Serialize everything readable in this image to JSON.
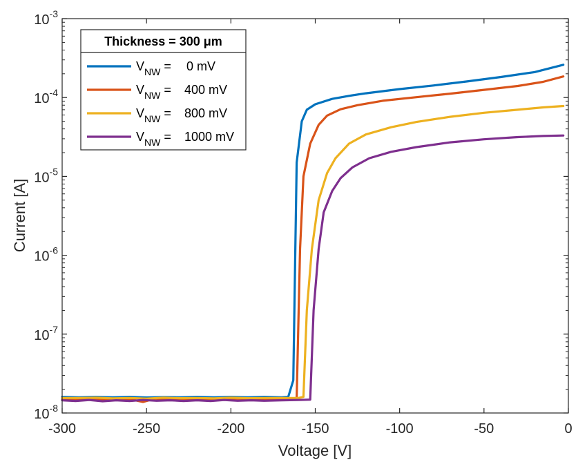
{
  "chart_data": {
    "type": "line",
    "xlabel": "Voltage [V]",
    "ylabel": "Current [A]",
    "xlim": [
      -300,
      0
    ],
    "ylim": [
      1e-08,
      0.001
    ],
    "yscale": "log",
    "grid": false,
    "x_ticks": [
      "-300",
      "-250",
      "-200",
      "-150",
      "-100",
      "-50",
      "0"
    ],
    "y_ticks": [
      {
        "base": "10",
        "exp": "-8"
      },
      {
        "base": "10",
        "exp": "-7"
      },
      {
        "base": "10",
        "exp": "-6"
      },
      {
        "base": "10",
        "exp": "-5"
      },
      {
        "base": "10",
        "exp": "-4"
      },
      {
        "base": "10",
        "exp": "-3"
      }
    ],
    "legend": {
      "title": "Thickness = 300 μm",
      "placement": "top-left",
      "prefix_main": "V",
      "prefix_sub": "NW",
      "eq": "="
    },
    "series": [
      {
        "name": "V_NW = 0 mV",
        "value_text": "0 mV",
        "color": "#0072BD",
        "points": [
          [
            -300,
            1.6e-08
          ],
          [
            -290,
            1.58e-08
          ],
          [
            -280,
            1.6e-08
          ],
          [
            -270,
            1.58e-08
          ],
          [
            -260,
            1.6e-08
          ],
          [
            -250,
            1.57e-08
          ],
          [
            -240,
            1.59e-08
          ],
          [
            -230,
            1.58e-08
          ],
          [
            -220,
            1.6e-08
          ],
          [
            -210,
            1.58e-08
          ],
          [
            -200,
            1.6e-08
          ],
          [
            -190,
            1.58e-08
          ],
          [
            -180,
            1.6e-08
          ],
          [
            -170,
            1.58e-08
          ],
          [
            -166,
            1.6e-08
          ],
          [
            -163,
            2.6e-08
          ],
          [
            -161,
            1.5e-05
          ],
          [
            -158,
            5e-05
          ],
          [
            -155,
            7e-05
          ],
          [
            -150,
            8.2e-05
          ],
          [
            -140,
            9.6e-05
          ],
          [
            -130,
            0.000105
          ],
          [
            -120,
            0.000113
          ],
          [
            -100,
            0.000128
          ],
          [
            -80,
            0.000142
          ],
          [
            -60,
            0.00016
          ],
          [
            -40,
            0.000182
          ],
          [
            -20,
            0.00021
          ],
          [
            -3,
            0.00026
          ]
        ]
      },
      {
        "name": "V_NW = 400 mV",
        "value_text": "400 mV",
        "color": "#D95319",
        "points": [
          [
            -300,
            1.5e-08
          ],
          [
            -290,
            1.47e-08
          ],
          [
            -280,
            1.52e-08
          ],
          [
            -270,
            1.45e-08
          ],
          [
            -260,
            1.5e-08
          ],
          [
            -252,
            1.38e-08
          ],
          [
            -245,
            1.52e-08
          ],
          [
            -235,
            1.47e-08
          ],
          [
            -225,
            1.51e-08
          ],
          [
            -215,
            1.46e-08
          ],
          [
            -205,
            1.5e-08
          ],
          [
            -195,
            1.52e-08
          ],
          [
            -185,
            1.48e-08
          ],
          [
            -175,
            1.5e-08
          ],
          [
            -168,
            1.5e-08
          ],
          [
            -161,
            1.55e-08
          ],
          [
            -159,
            1.2e-06
          ],
          [
            -157,
            1e-05
          ],
          [
            -153,
            2.6e-05
          ],
          [
            -148,
            4.5e-05
          ],
          [
            -143,
            5.9e-05
          ],
          [
            -135,
            7.1e-05
          ],
          [
            -125,
            8e-05
          ],
          [
            -110,
            9.1e-05
          ],
          [
            -90,
            0.000101
          ],
          [
            -70,
            0.000112
          ],
          [
            -50,
            0.000125
          ],
          [
            -30,
            0.00014
          ],
          [
            -15,
            0.000158
          ],
          [
            -3,
            0.000185
          ]
        ]
      },
      {
        "name": "V_NW = 800 mV",
        "value_text": "800 mV",
        "color": "#EDB120",
        "points": [
          [
            -300,
            1.55e-08
          ],
          [
            -290,
            1.55e-08
          ],
          [
            -280,
            1.56e-08
          ],
          [
            -270,
            1.53e-08
          ],
          [
            -260,
            1.55e-08
          ],
          [
            -250,
            1.52e-08
          ],
          [
            -240,
            1.56e-08
          ],
          [
            -230,
            1.54e-08
          ],
          [
            -220,
            1.55e-08
          ],
          [
            -210,
            1.53e-08
          ],
          [
            -200,
            1.56e-08
          ],
          [
            -190,
            1.54e-08
          ],
          [
            -180,
            1.55e-08
          ],
          [
            -170,
            1.55e-08
          ],
          [
            -160,
            1.55e-08
          ],
          [
            -157,
            1.6e-08
          ],
          [
            -155,
            2e-07
          ],
          [
            -152,
            1.2e-06
          ],
          [
            -148,
            5e-06
          ],
          [
            -143,
            1.1e-05
          ],
          [
            -138,
            1.7e-05
          ],
          [
            -130,
            2.6e-05
          ],
          [
            -120,
            3.4e-05
          ],
          [
            -105,
            4.2e-05
          ],
          [
            -90,
            4.9e-05
          ],
          [
            -70,
            5.7e-05
          ],
          [
            -50,
            6.4e-05
          ],
          [
            -30,
            7e-05
          ],
          [
            -15,
            7.5e-05
          ],
          [
            -3,
            7.8e-05
          ]
        ]
      },
      {
        "name": "V_NW = 1000 mV",
        "value_text": "1000 mV",
        "color": "#7E2F8E",
        "points": [
          [
            -300,
            1.45e-08
          ],
          [
            -292,
            1.42e-08
          ],
          [
            -284,
            1.46e-08
          ],
          [
            -276,
            1.41e-08
          ],
          [
            -268,
            1.45e-08
          ],
          [
            -260,
            1.42e-08
          ],
          [
            -252,
            1.46e-08
          ],
          [
            -244,
            1.43e-08
          ],
          [
            -236,
            1.45e-08
          ],
          [
            -228,
            1.42e-08
          ],
          [
            -220,
            1.45e-08
          ],
          [
            -212,
            1.42e-08
          ],
          [
            -204,
            1.46e-08
          ],
          [
            -196,
            1.43e-08
          ],
          [
            -188,
            1.45e-08
          ],
          [
            -180,
            1.43e-08
          ],
          [
            -170,
            1.45e-08
          ],
          [
            -160,
            1.46e-08
          ],
          [
            -153,
            1.48e-08
          ],
          [
            -151,
            2e-07
          ],
          [
            -148,
            1.2e-06
          ],
          [
            -145,
            3.5e-06
          ],
          [
            -140,
            6.5e-06
          ],
          [
            -135,
            9.5e-06
          ],
          [
            -128,
            1.3e-05
          ],
          [
            -118,
            1.7e-05
          ],
          [
            -105,
            2.05e-05
          ],
          [
            -90,
            2.35e-05
          ],
          [
            -70,
            2.7e-05
          ],
          [
            -50,
            2.95e-05
          ],
          [
            -30,
            3.15e-05
          ],
          [
            -15,
            3.25e-05
          ],
          [
            -3,
            3.3e-05
          ]
        ]
      }
    ]
  }
}
